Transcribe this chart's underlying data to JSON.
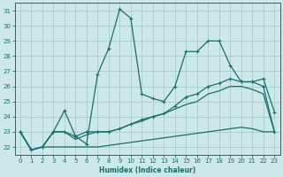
{
  "xlabel": "Humidex (Indice chaleur)",
  "background_color": "#cce8e8",
  "grid_color": "#aacccc",
  "line_color": "#1a6e6e",
  "xlim": [
    -0.5,
    23.5
  ],
  "ylim": [
    21.5,
    31.5
  ],
  "xticks": [
    0,
    1,
    2,
    3,
    4,
    5,
    6,
    7,
    8,
    9,
    10,
    11,
    12,
    13,
    14,
    15,
    16,
    17,
    18,
    19,
    20,
    21,
    22,
    23
  ],
  "yticks": [
    22,
    23,
    24,
    25,
    26,
    27,
    28,
    29,
    30,
    31
  ],
  "series1_x": [
    0,
    1,
    2,
    3,
    4,
    5,
    6,
    7,
    8,
    9,
    10,
    11,
    12,
    13,
    14,
    15,
    16,
    17,
    18,
    19,
    20,
    21,
    22,
    23
  ],
  "series1_y": [
    23.0,
    21.8,
    22.0,
    23.0,
    24.4,
    22.7,
    22.2,
    26.8,
    28.5,
    31.1,
    30.5,
    25.5,
    25.2,
    25.0,
    26.0,
    28.3,
    28.3,
    29.0,
    29.0,
    27.4,
    26.3,
    26.3,
    26.5,
    24.3
  ],
  "series2_x": [
    0,
    1,
    2,
    3,
    4,
    5,
    6,
    7,
    8,
    9,
    10,
    11,
    12,
    13,
    14,
    15,
    16,
    17,
    18,
    19,
    20,
    21,
    22,
    23
  ],
  "series2_y": [
    23.0,
    21.8,
    22.0,
    23.0,
    23.0,
    22.7,
    23.0,
    23.0,
    23.0,
    23.2,
    23.5,
    23.8,
    24.0,
    24.2,
    24.7,
    25.3,
    25.5,
    26.0,
    26.2,
    26.5,
    26.3,
    26.3,
    26.0,
    23.0
  ],
  "series3_x": [
    0,
    1,
    2,
    3,
    4,
    5,
    6,
    7,
    8,
    9,
    10,
    11,
    12,
    13,
    14,
    15,
    16,
    17,
    18,
    19,
    20,
    21,
    22,
    23
  ],
  "series3_y": [
    23.0,
    21.8,
    22.0,
    23.0,
    23.0,
    22.5,
    22.8,
    23.0,
    23.0,
    23.2,
    23.5,
    23.7,
    24.0,
    24.2,
    24.5,
    24.8,
    25.0,
    25.5,
    25.7,
    26.0,
    26.0,
    25.8,
    25.5,
    23.0
  ],
  "series4_x": [
    0,
    1,
    2,
    3,
    4,
    5,
    6,
    7,
    8,
    9,
    10,
    11,
    12,
    13,
    14,
    15,
    16,
    17,
    18,
    19,
    20,
    21,
    22,
    23
  ],
  "series4_y": [
    23.0,
    21.8,
    22.0,
    22.0,
    22.0,
    22.0,
    22.0,
    22.0,
    22.1,
    22.2,
    22.3,
    22.4,
    22.5,
    22.6,
    22.7,
    22.8,
    22.9,
    23.0,
    23.1,
    23.2,
    23.3,
    23.2,
    23.0,
    23.0
  ]
}
